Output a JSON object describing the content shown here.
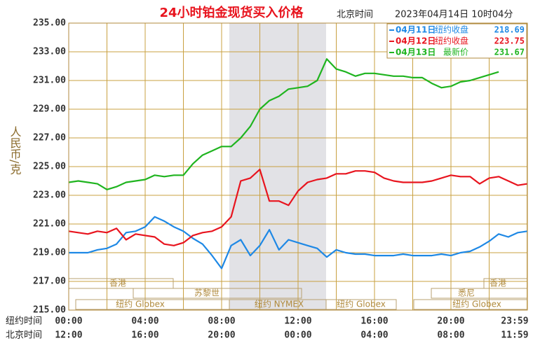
{
  "chart_data": {
    "type": "line",
    "title": "24小时铂金现货买入价格",
    "subtitle": "北京时间",
    "date": "2023年04月14日 10时04分",
    "ylabel": "人民币/克",
    "xlabel": "纽约时间",
    "x2label": "北京时间",
    "xlim": [
      0,
      24
    ],
    "ylim": [
      215,
      235
    ],
    "yticks": [
      {
        "value": 215,
        "label": "215.00"
      },
      {
        "value": 217,
        "label": "217.00"
      },
      {
        "value": 219,
        "label": "219.00"
      },
      {
        "value": 221,
        "label": "221.00"
      },
      {
        "value": 223,
        "label": "223.00"
      },
      {
        "value": 225,
        "label": "225.00"
      },
      {
        "value": 227,
        "label": "227.00"
      },
      {
        "value": 229,
        "label": "229.00"
      },
      {
        "value": 231,
        "label": "231.00"
      },
      {
        "value": 233,
        "label": "233.00"
      },
      {
        "value": 235,
        "label": "235.00"
      }
    ],
    "xticks": [
      {
        "value": 0,
        "label": "00:00"
      },
      {
        "value": 4,
        "label": "04:00"
      },
      {
        "value": 8,
        "label": "08:00"
      },
      {
        "value": 12,
        "label": "12:00"
      },
      {
        "value": 16,
        "label": "16:00"
      },
      {
        "value": 20,
        "label": "20:00"
      },
      {
        "value": 23.983,
        "label": "23:59"
      }
    ],
    "x2ticks": [
      {
        "value": 0,
        "label": "12:00"
      },
      {
        "value": 4,
        "label": "16:00"
      },
      {
        "value": 8,
        "label": "20:00"
      },
      {
        "value": 12,
        "label": "00:00"
      },
      {
        "value": 16,
        "label": "04:00"
      },
      {
        "value": 20,
        "label": "08:00"
      },
      {
        "value": 23.983,
        "label": "11:59"
      }
    ],
    "xminor": [
      2,
      6,
      10,
      14,
      18,
      22
    ],
    "grid": true,
    "legend": "upper right",
    "sessions": [
      "香港",
      "苏黎世",
      "纽约 Globex",
      "纽约 NYMEX",
      "纽约 Globex",
      "香港",
      "悉尼",
      "纽约 Globex"
    ],
    "x": [
      0,
      0.5,
      1,
      1.5,
      2,
      2.5,
      3,
      3.5,
      4,
      4.5,
      5,
      5.5,
      6,
      6.5,
      7,
      7.5,
      8,
      8.5,
      9,
      9.5,
      10,
      10.5,
      11,
      11.5,
      12,
      12.5,
      13,
      13.5,
      14,
      14.5,
      15,
      15.5,
      16,
      16.5,
      17,
      17.5,
      18,
      18.5,
      19,
      19.5,
      20,
      20.5,
      21,
      21.5,
      22,
      22.5,
      23,
      23.5,
      24
    ],
    "series": [
      {
        "name": "04月11日",
        "status": "纽约收盘",
        "price": 218.69,
        "color": "#1e88e5",
        "values": [
          219.0,
          219.0,
          219.0,
          219.2,
          219.3,
          219.6,
          220.4,
          220.5,
          220.8,
          221.5,
          221.2,
          220.8,
          220.5,
          220.0,
          219.6,
          218.8,
          217.9,
          219.5,
          219.9,
          218.8,
          219.5,
          220.6,
          219.2,
          219.9,
          219.7,
          219.5,
          219.3,
          218.7,
          219.2,
          219.0,
          218.9,
          218.9,
          218.8,
          218.8,
          218.8,
          218.9,
          218.8,
          218.8,
          218.8,
          218.9,
          218.8,
          219.0,
          219.1,
          219.4,
          219.8,
          220.3,
          220.1,
          220.4,
          220.5
        ]
      },
      {
        "name": "04月12日",
        "status": "纽约收盘",
        "price": 223.75,
        "color": "#e8141e",
        "values": [
          220.5,
          220.4,
          220.3,
          220.5,
          220.4,
          220.7,
          219.9,
          220.3,
          220.2,
          220.1,
          219.6,
          219.5,
          219.7,
          220.2,
          220.4,
          220.5,
          220.8,
          221.5,
          224.0,
          224.2,
          224.8,
          222.6,
          222.6,
          222.3,
          223.3,
          223.9,
          224.1,
          224.2,
          224.5,
          224.5,
          224.7,
          224.7,
          224.6,
          224.2,
          224.0,
          223.9,
          223.9,
          223.9,
          224.0,
          224.2,
          224.4,
          224.3,
          224.3,
          223.8,
          224.2,
          224.3,
          224.0,
          223.7,
          223.8
        ]
      },
      {
        "name": "04月13日",
        "status": "最新价",
        "price": 231.67,
        "color": "#1fb41f",
        "values": [
          223.9,
          224.0,
          223.9,
          223.8,
          223.4,
          223.6,
          223.9,
          224.0,
          224.1,
          224.4,
          224.3,
          224.4,
          224.4,
          225.2,
          225.8,
          226.1,
          226.4,
          226.4,
          227.0,
          227.8,
          229.0,
          229.6,
          229.9,
          230.4,
          230.5,
          230.6,
          231.0,
          232.5,
          231.8,
          231.6,
          231.3,
          231.5,
          231.5,
          231.4,
          231.3,
          231.3,
          231.2,
          231.2,
          230.8,
          230.5,
          230.6,
          230.9,
          231.0,
          231.2,
          231.4,
          231.6,
          null,
          null,
          null
        ]
      }
    ]
  }
}
